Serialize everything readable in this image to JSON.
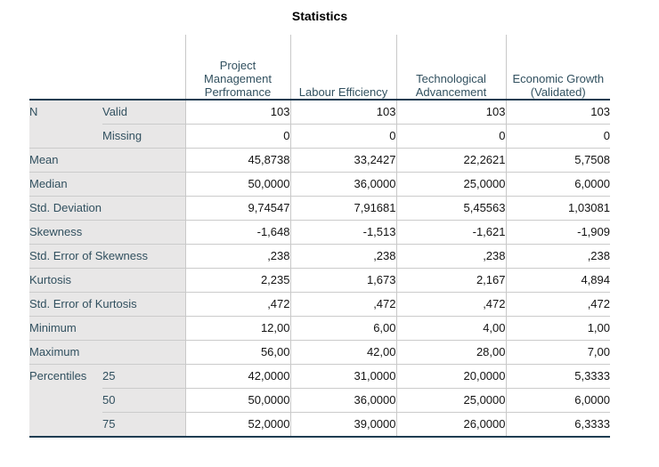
{
  "title": "Statistics",
  "colors": {
    "label_text": "#31505f",
    "dark_rule": "#1f3d52",
    "grid_line": "#c9c9c9",
    "row_line": "#cbcbcb",
    "stub_background": "#e8e7e7",
    "data_text": "#131313"
  },
  "columns": [
    "Project Management Perfromance",
    "Labour Efficiency",
    "Technological Advancement",
    "Economic Growth (Validated)"
  ],
  "rows": [
    {
      "label": "N",
      "label_rowspan": 2,
      "sublabel": "Valid",
      "divider": false,
      "values": [
        "103",
        "103",
        "103",
        "103"
      ]
    },
    {
      "sublabel": "Missing",
      "divider": true,
      "values": [
        "0",
        "0",
        "0",
        "0"
      ]
    },
    {
      "label": "Mean",
      "label_colspan": 2,
      "divider": true,
      "values": [
        "45,8738",
        "33,2427",
        "22,2621",
        "5,7508"
      ]
    },
    {
      "label": "Median",
      "label_colspan": 2,
      "divider": true,
      "values": [
        "50,0000",
        "36,0000",
        "25,0000",
        "6,0000"
      ]
    },
    {
      "label": "Std. Deviation",
      "label_colspan": 2,
      "divider": true,
      "values": [
        "9,74547",
        "7,91681",
        "5,45563",
        "1,03081"
      ]
    },
    {
      "label": "Skewness",
      "label_colspan": 2,
      "divider": true,
      "values": [
        "-1,648",
        "-1,513",
        "-1,621",
        "-1,909"
      ]
    },
    {
      "label": "Std. Error of Skewness",
      "label_colspan": 2,
      "divider": true,
      "values": [
        ",238",
        ",238",
        ",238",
        ",238"
      ]
    },
    {
      "label": "Kurtosis",
      "label_colspan": 2,
      "divider": true,
      "values": [
        "2,235",
        "1,673",
        "2,167",
        "4,894"
      ]
    },
    {
      "label": "Std. Error of Kurtosis",
      "label_colspan": 2,
      "divider": true,
      "values": [
        ",472",
        ",472",
        ",472",
        ",472"
      ]
    },
    {
      "label": "Minimum",
      "label_colspan": 2,
      "divider": true,
      "values": [
        "12,00",
        "6,00",
        "4,00",
        "1,00"
      ]
    },
    {
      "label": "Maximum",
      "label_colspan": 2,
      "divider": true,
      "values": [
        "56,00",
        "42,00",
        "28,00",
        "7,00"
      ]
    },
    {
      "label": "Percentiles",
      "label_rowspan": 3,
      "sublabel": "25",
      "divider": true,
      "values": [
        "42,0000",
        "31,0000",
        "20,0000",
        "5,3333"
      ]
    },
    {
      "sublabel": "50",
      "divider": true,
      "values": [
        "50,0000",
        "36,0000",
        "25,0000",
        "6,0000"
      ]
    },
    {
      "sublabel": "75",
      "divider": true,
      "values": [
        "52,0000",
        "39,0000",
        "26,0000",
        "6,3333"
      ]
    }
  ]
}
